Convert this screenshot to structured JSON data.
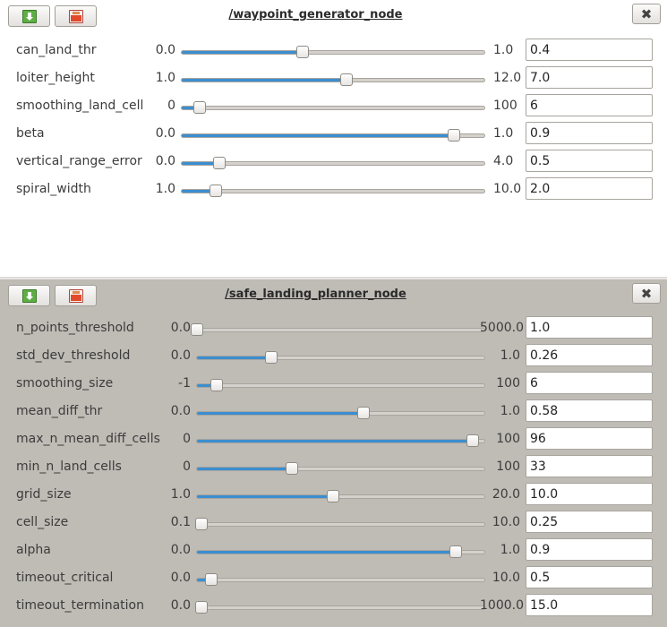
{
  "panels": [
    {
      "id": "waypoint",
      "title": "/waypoint_generator_node",
      "params": [
        {
          "name": "can_land_thr",
          "min": "0.0",
          "max": "1.0",
          "value": "0.4",
          "fraction": 0.4
        },
        {
          "name": "loiter_height",
          "min": "1.0",
          "max": "12.0",
          "value": "7.0",
          "fraction": 0.545
        },
        {
          "name": "smoothing_land_cell",
          "min": "0",
          "max": "100",
          "value": "6",
          "fraction": 0.06
        },
        {
          "name": "beta",
          "min": "0.0",
          "max": "1.0",
          "value": "0.9",
          "fraction": 0.9
        },
        {
          "name": "vertical_range_error",
          "min": "0.0",
          "max": "4.0",
          "value": "0.5",
          "fraction": 0.125
        },
        {
          "name": "spiral_width",
          "min": "1.0",
          "max": "10.0",
          "value": "2.0",
          "fraction": 0.111
        }
      ]
    },
    {
      "id": "safe_landing",
      "title": "/safe_landing_planner_node",
      "params": [
        {
          "name": "n_points_threshold",
          "min": "0.0",
          "max": "5000.0",
          "value": "1.0",
          "fraction": 0.0002
        },
        {
          "name": "std_dev_threshold",
          "min": "0.0",
          "max": "1.0",
          "value": "0.26",
          "fraction": 0.26
        },
        {
          "name": "smoothing_size",
          "min": "-1",
          "max": "100",
          "value": "6",
          "fraction": 0.069
        },
        {
          "name": "mean_diff_thr",
          "min": "0.0",
          "max": "1.0",
          "value": "0.58",
          "fraction": 0.58
        },
        {
          "name": "max_n_mean_diff_cells",
          "min": "0",
          "max": "100",
          "value": "96",
          "fraction": 0.96
        },
        {
          "name": "min_n_land_cells",
          "min": "0",
          "max": "100",
          "value": "33",
          "fraction": 0.33
        },
        {
          "name": "grid_size",
          "min": "1.0",
          "max": "20.0",
          "value": "10.0",
          "fraction": 0.474
        },
        {
          "name": "cell_size",
          "min": "0.1",
          "max": "10.0",
          "value": "0.25",
          "fraction": 0.015
        },
        {
          "name": "alpha",
          "min": "0.0",
          "max": "1.0",
          "value": "0.9",
          "fraction": 0.9
        },
        {
          "name": "timeout_critical",
          "min": "0.0",
          "max": "10.0",
          "value": "0.5",
          "fraction": 0.05
        },
        {
          "name": "timeout_termination",
          "min": "0.0",
          "max": "1000.0",
          "value": "15.0",
          "fraction": 0.015
        }
      ]
    }
  ],
  "buttons": {
    "load_icon": "load-icon",
    "save_icon": "save-icon",
    "close_label": "✖"
  },
  "colors": {
    "slider_fill": "#3b8ed0",
    "panel_active_bg": "#ffffff",
    "panel_inactive_bg": "#bfbbb5"
  }
}
